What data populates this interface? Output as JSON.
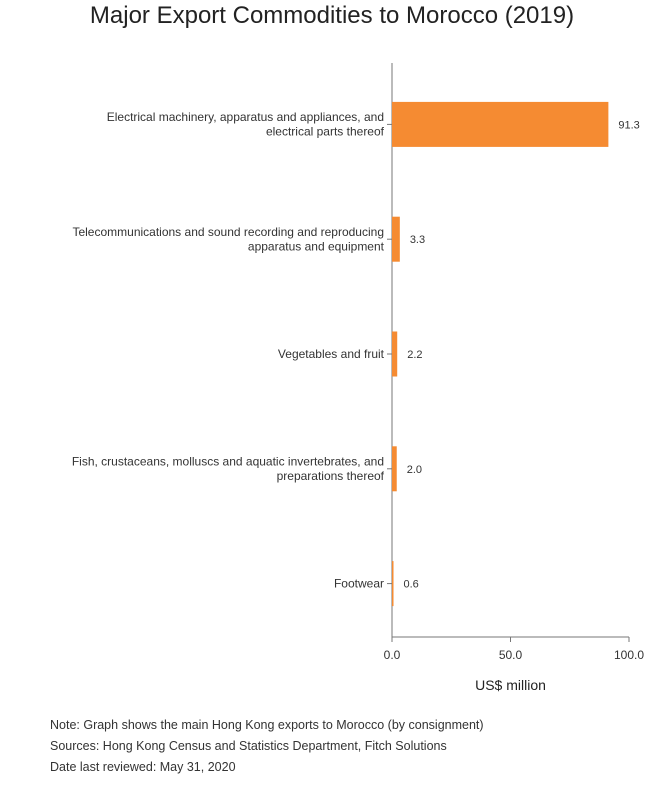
{
  "chart_data": {
    "type": "bar",
    "orientation": "horizontal",
    "title": "Major Export Commodities to Morocco (2019)",
    "xlabel": "US$ million",
    "ylabel": "",
    "xlim": [
      0,
      100
    ],
    "xticks": [
      "0.0",
      "50.0",
      "100.0"
    ],
    "categories": [
      [
        "Electrical machinery, apparatus and appliances, and",
        "electrical parts thereof"
      ],
      [
        "Telecommunications and sound recording and reproducing",
        "apparatus and equipment"
      ],
      [
        "Vegetables and fruit"
      ],
      [
        "Fish, crustaceans, molluscs and aquatic invertebrates, and",
        "preparations thereof"
      ],
      [
        "Footwear"
      ]
    ],
    "values": [
      91.3,
      3.3,
      2.2,
      2.0,
      0.6
    ],
    "value_labels": [
      "91.3",
      "3.3",
      "2.2",
      "2.0",
      "0.6"
    ],
    "bar_color": "#f58b32",
    "grid": false,
    "legend": "none"
  },
  "notes": [
    "Note: Graph shows the main Hong Kong exports to Morocco (by consignment)",
    "Sources: Hong Kong Census and Statistics Department, Fitch Solutions",
    "Date last reviewed: May 31, 2020"
  ]
}
